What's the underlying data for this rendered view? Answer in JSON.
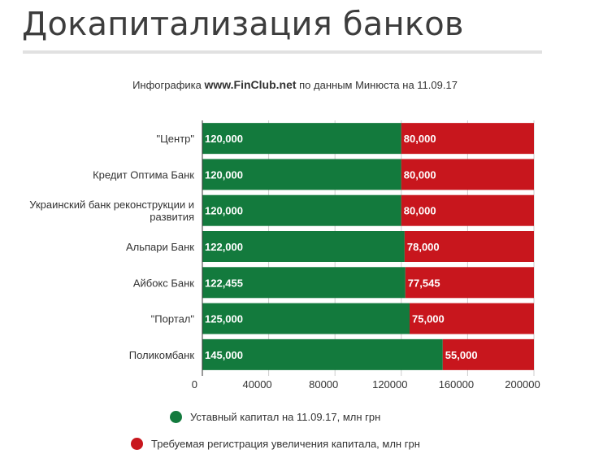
{
  "page": {
    "title": "Докапитализация банков",
    "subtitle": {
      "prefix": "Инфографика ",
      "site": "www.FinClub.net",
      "suffix": " по данным Минюста на 11.09.17"
    }
  },
  "colors": {
    "series1": "#137a3d",
    "series2": "#c8161d"
  },
  "chart_data": {
    "type": "bar",
    "orientation": "horizontal",
    "stacked": true,
    "categories": [
      "\"Центр\"",
      "Кредит Оптима Банк",
      "Украинский банк реконструкции и развития",
      "Альпари Банк",
      "Айбокс Банк",
      "\"Портал\"",
      "Поликомбанк"
    ],
    "category_lines": [
      [
        "\"Центр\""
      ],
      [
        "Кредит Оптима Банк"
      ],
      [
        "Украинский банк реконструкции и",
        "развития"
      ],
      [
        "Альпари Банк"
      ],
      [
        "Айбокс Банк"
      ],
      [
        "\"Портал\""
      ],
      [
        "Поликомбанк"
      ]
    ],
    "series": [
      {
        "name": "Уставный капитал на 11.09.17, млн грн",
        "values": [
          120000,
          120000,
          120000,
          122000,
          122455,
          125000,
          145000
        ],
        "labels": [
          "120,000",
          "120,000",
          "120,000",
          "122,000",
          "122,455",
          "125,000",
          "145,000"
        ]
      },
      {
        "name": "Требуемая регистрация увеличения капитала, млн грн",
        "values": [
          80000,
          80000,
          80000,
          78000,
          77545,
          75000,
          55000
        ],
        "labels": [
          "80,000",
          "80,000",
          "80,000",
          "78,000",
          "77,545",
          "75,000",
          "55,000"
        ]
      }
    ],
    "xlim": [
      0,
      200000
    ],
    "xticks": [
      0,
      40000,
      80000,
      120000,
      160000,
      200000
    ],
    "xtick_labels": [
      "0",
      "40000",
      "80000",
      "120000",
      "160000",
      "200000"
    ],
    "grid": true,
    "legend_position": "bottom-left"
  }
}
